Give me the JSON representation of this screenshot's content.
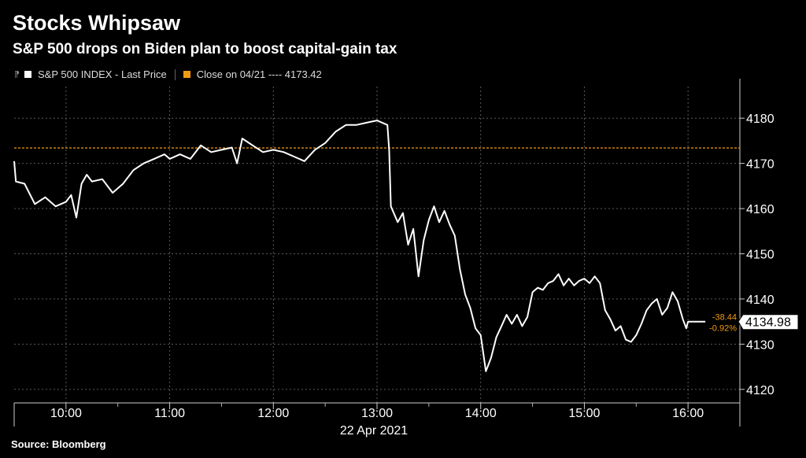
{
  "title": "Stocks Whipsaw",
  "subtitle": "S&P 500 drops on Biden plan to boost capital-gain tax",
  "legend": {
    "series_label": "S&P 500 INDEX - Last Price",
    "close_label": "Close on 04/21 ---- 4173.42"
  },
  "source": "Source: Bloomberg",
  "colors": {
    "background": "#000000",
    "price": "#ffffff",
    "close": "#f29a13",
    "grid": "#5a5a5a"
  },
  "chart_data": {
    "type": "line",
    "x_date": "22 Apr 2021",
    "x_ticks": [
      "10:00",
      "11:00",
      "12:00",
      "13:00",
      "14:00",
      "15:00",
      "16:00"
    ],
    "x_tick_hours": [
      10,
      11,
      12,
      13,
      14,
      15,
      16
    ],
    "xlim_hours": [
      9.5,
      16.5
    ],
    "y_ticks": [
      4120,
      4130,
      4140,
      4150,
      4160,
      4170,
      4180
    ],
    "ylim": [
      4117,
      4187
    ],
    "grid": true,
    "legend_position": "top-left",
    "series": [
      {
        "name": "S&P 500 INDEX - Last Price",
        "color": "#ffffff",
        "points": [
          [
            "09:30",
            4170.5
          ],
          [
            "09:31",
            4166.0
          ],
          [
            "09:36",
            4165.5
          ],
          [
            "09:42",
            4161.0
          ],
          [
            "09:48",
            4162.5
          ],
          [
            "09:54",
            4160.5
          ],
          [
            "10:00",
            4161.5
          ],
          [
            "10:03",
            4163.0
          ],
          [
            "10:06",
            4158.0
          ],
          [
            "10:09",
            4165.5
          ],
          [
            "10:12",
            4167.5
          ],
          [
            "10:15",
            4166.0
          ],
          [
            "10:21",
            4166.5
          ],
          [
            "10:27",
            4163.5
          ],
          [
            "10:33",
            4165.5
          ],
          [
            "10:39",
            4168.5
          ],
          [
            "10:45",
            4170.0
          ],
          [
            "10:51",
            4171.0
          ],
          [
            "10:57",
            4172.0
          ],
          [
            "11:00",
            4171.0
          ],
          [
            "11:06",
            4172.0
          ],
          [
            "11:12",
            4171.0
          ],
          [
            "11:18",
            4174.0
          ],
          [
            "11:24",
            4172.5
          ],
          [
            "11:30",
            4173.0
          ],
          [
            "11:36",
            4173.5
          ],
          [
            "11:39",
            4170.0
          ],
          [
            "11:42",
            4175.5
          ],
          [
            "11:48",
            4174.0
          ],
          [
            "11:54",
            4172.5
          ],
          [
            "12:00",
            4173.0
          ],
          [
            "12:06",
            4172.5
          ],
          [
            "12:12",
            4171.5
          ],
          [
            "12:18",
            4170.5
          ],
          [
            "12:24",
            4173.0
          ],
          [
            "12:30",
            4174.5
          ],
          [
            "12:36",
            4177.0
          ],
          [
            "12:42",
            4178.5
          ],
          [
            "12:48",
            4178.5
          ],
          [
            "12:54",
            4179.0
          ],
          [
            "13:00",
            4179.5
          ],
          [
            "13:06",
            4178.5
          ],
          [
            "13:07",
            4173.0
          ],
          [
            "13:08",
            4160.5
          ],
          [
            "13:12",
            4157.0
          ],
          [
            "13:15",
            4159.0
          ],
          [
            "13:18",
            4152.0
          ],
          [
            "13:21",
            4155.5
          ],
          [
            "13:24",
            4145.0
          ],
          [
            "13:27",
            4153.0
          ],
          [
            "13:30",
            4157.5
          ],
          [
            "13:33",
            4160.5
          ],
          [
            "13:36",
            4157.0
          ],
          [
            "13:39",
            4159.5
          ],
          [
            "13:42",
            4156.5
          ],
          [
            "13:45",
            4154.0
          ],
          [
            "13:48",
            4146.5
          ],
          [
            "13:51",
            4141.0
          ],
          [
            "13:54",
            4138.0
          ],
          [
            "13:57",
            4133.5
          ],
          [
            "14:00",
            4132.0
          ],
          [
            "14:03",
            4124.0
          ],
          [
            "14:06",
            4127.0
          ],
          [
            "14:09",
            4131.5
          ],
          [
            "14:12",
            4134.0
          ],
          [
            "14:15",
            4136.5
          ],
          [
            "14:18",
            4134.5
          ],
          [
            "14:21",
            4136.5
          ],
          [
            "14:24",
            4134.0
          ],
          [
            "14:27",
            4136.0
          ],
          [
            "14:30",
            4141.5
          ],
          [
            "14:33",
            4142.5
          ],
          [
            "14:36",
            4142.0
          ],
          [
            "14:39",
            4143.5
          ],
          [
            "14:42",
            4144.0
          ],
          [
            "14:45",
            4145.5
          ],
          [
            "14:48",
            4143.0
          ],
          [
            "14:51",
            4144.5
          ],
          [
            "14:54",
            4143.0
          ],
          [
            "14:57",
            4144.0
          ],
          [
            "15:00",
            4144.5
          ],
          [
            "15:03",
            4143.5
          ],
          [
            "15:06",
            4145.0
          ],
          [
            "15:09",
            4143.5
          ],
          [
            "15:12",
            4137.5
          ],
          [
            "15:15",
            4135.5
          ],
          [
            "15:18",
            4133.0
          ],
          [
            "15:21",
            4134.0
          ],
          [
            "15:24",
            4131.0
          ],
          [
            "15:27",
            4130.5
          ],
          [
            "15:30",
            4132.0
          ],
          [
            "15:33",
            4134.5
          ],
          [
            "15:36",
            4137.5
          ],
          [
            "15:39",
            4139.0
          ],
          [
            "15:42",
            4140.0
          ],
          [
            "15:45",
            4136.5
          ],
          [
            "15:48",
            4138.0
          ],
          [
            "15:51",
            4141.5
          ],
          [
            "15:54",
            4139.5
          ],
          [
            "15:57",
            4135.5
          ],
          [
            "15:59",
            4133.5
          ],
          [
            "16:00",
            4134.98
          ],
          [
            "16:10",
            4134.98
          ]
        ]
      },
      {
        "name": "Close on 04/21",
        "color": "#f29a13",
        "dashed": true,
        "value": 4173.42
      }
    ],
    "last_value_label": "4134.98",
    "change_label": "-38.44",
    "change_pct_label": "-0.92%"
  }
}
